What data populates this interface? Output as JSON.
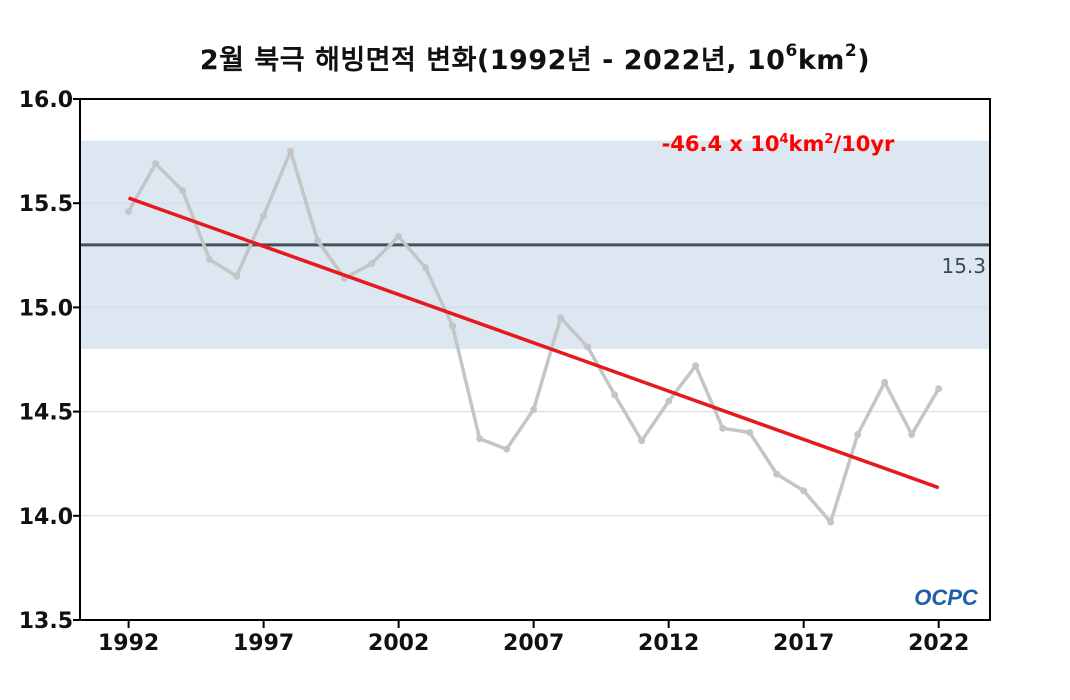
{
  "chart_data": {
    "type": "line",
    "title_main": "2월 북극 해빙면적 변화(1992년 - 2022년, 10",
    "title_sup1": "6",
    "title_mid": "km",
    "title_sup2": "2",
    "title_end": ")",
    "xlabel": "",
    "ylabel": "",
    "xlim": [
      1990.2,
      2023.9
    ],
    "ylim": [
      13.5,
      16.0
    ],
    "x_ticks": [
      "1992",
      "1997",
      "2002",
      "2007",
      "2012",
      "2017",
      "2022"
    ],
    "y_ticks": [
      "13.5",
      "14.0",
      "14.5",
      "15.0",
      "15.5",
      "16.0"
    ],
    "series": [
      {
        "x": [
          1992,
          1993,
          1994,
          1995,
          1996,
          1997,
          1998,
          1999,
          2000,
          2001,
          2002,
          2003,
          2004,
          2005,
          2006,
          2007,
          2008,
          2009,
          2010,
          2011,
          2012,
          2013,
          2014,
          2015,
          2016,
          2017,
          2018,
          2019,
          2020,
          2021,
          2022
        ],
        "values": [
          15.46,
          15.69,
          15.56,
          15.23,
          15.15,
          15.44,
          15.75,
          15.32,
          15.14,
          15.21,
          15.34,
          15.19,
          14.91,
          14.37,
          14.32,
          14.51,
          14.95,
          14.81,
          14.58,
          14.36,
          14.55,
          14.72,
          14.42,
          14.4,
          14.2,
          14.12,
          13.97,
          14.39,
          14.64,
          14.39,
          14.61
        ],
        "color": "#c3c5c7"
      }
    ],
    "trend": {
      "start": [
        1992,
        15.525
      ],
      "end": [
        2022,
        14.135
      ],
      "color": "#e41a1c",
      "label_pre": "-46.4 x 10",
      "label_sup1": "4",
      "label_mid": "km",
      "label_sup2": "2",
      "label_end": "/10yr"
    },
    "mean": {
      "value": 15.3,
      "label": "15.3",
      "color": "#44505a"
    },
    "band": {
      "low": 14.8,
      "high": 15.8,
      "color": "#dde7f1"
    },
    "grid": "horizontal",
    "logo_text": "OCPC"
  }
}
